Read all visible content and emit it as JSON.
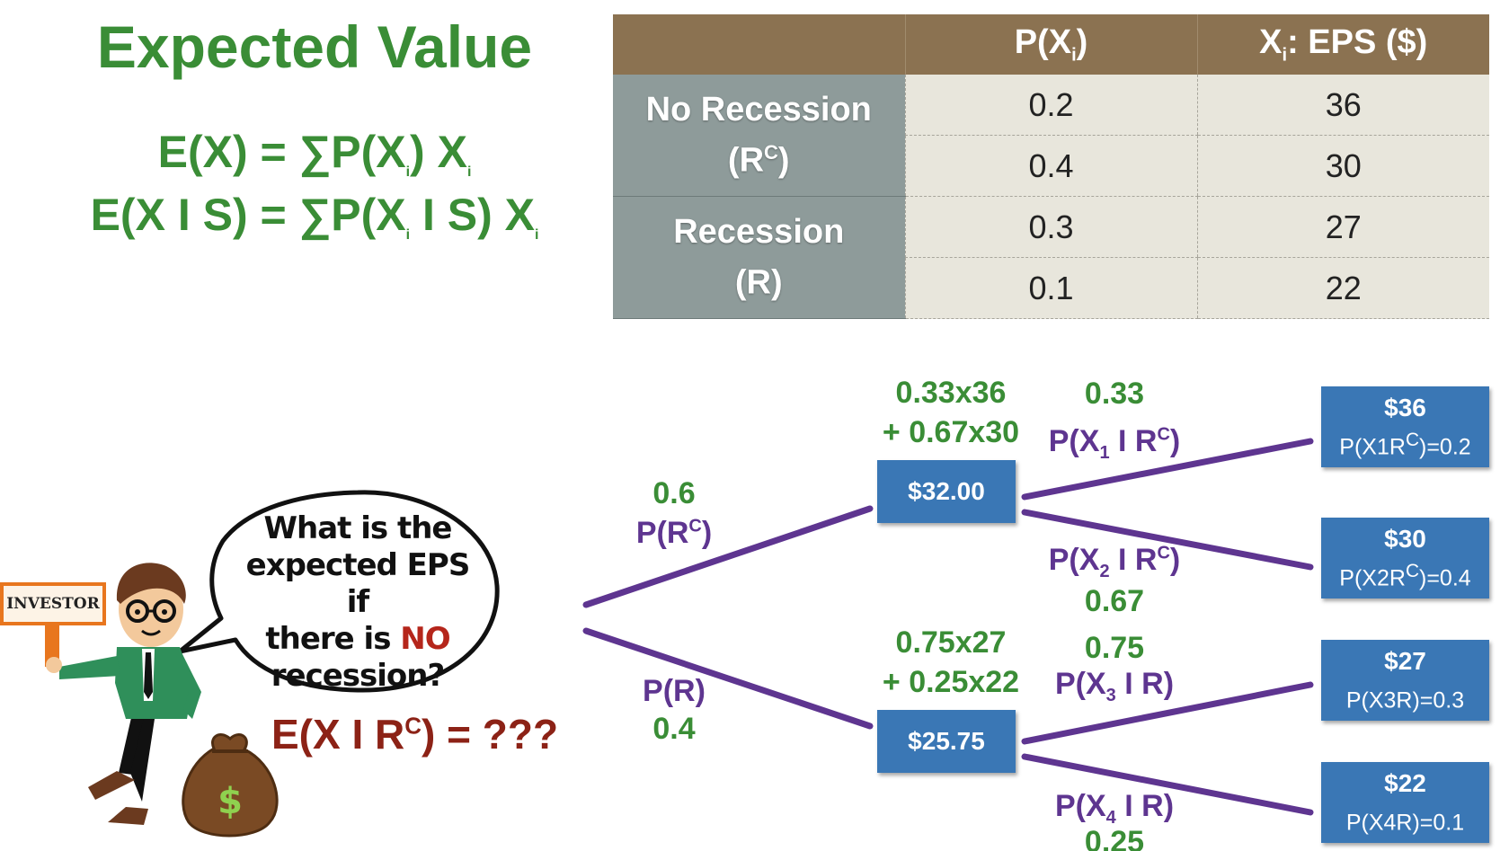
{
  "title": "Expected Value",
  "formulas": {
    "f1": {
      "lhs": "E(X) = ∑P(X",
      "sub": "i",
      "rhs": ") X",
      "sub2": "i"
    },
    "f2": {
      "lhs": "E(X I S) = ∑P(X",
      "sub": "i",
      "rhs": " I S) X",
      "sub2": "i"
    }
  },
  "table": {
    "headers": {
      "blank": "",
      "p_pre": "P(X",
      "p_sub": "i",
      "p_post": ")",
      "x_pre": "X",
      "x_sub": "i",
      "x_post": ": EPS ($)"
    },
    "groups": [
      {
        "line1": "No Recession",
        "line2_pre": "(R",
        "line2_sup": "C",
        "line2_post": ")",
        "rows": [
          {
            "p": "0.2",
            "x": "36"
          },
          {
            "p": "0.4",
            "x": "30"
          }
        ]
      },
      {
        "line1": "Recession",
        "line2_pre": "(R)",
        "line2_sup": "",
        "line2_post": "",
        "rows": [
          {
            "p": "0.3",
            "x": "27"
          },
          {
            "p": "0.1",
            "x": "22"
          }
        ]
      }
    ]
  },
  "tree": {
    "root_branches": {
      "upper": {
        "prob": "0.6",
        "label_pre": "P(R",
        "label_sup": "C",
        "label_post": ")"
      },
      "lower": {
        "label": "P(R)",
        "prob": "0.4"
      }
    },
    "mid_nodes": {
      "upper": {
        "value": "$32.00",
        "calc1": "0.33x36",
        "calc2": "+ 0.67x30"
      },
      "lower": {
        "value": "$25.75",
        "calc1": "0.75x27",
        "calc2": "+ 0.25x22"
      }
    },
    "branches": [
      {
        "prob": "0.33",
        "pre": "P(X",
        "sub": "1",
        "mid": " I R",
        "sup": "C",
        "post": ")"
      },
      {
        "prob": "0.67",
        "pre": "P(X",
        "sub": "2",
        "mid": " I R",
        "sup": "C",
        "post": ")"
      },
      {
        "prob": "0.75",
        "pre": "P(X",
        "sub": "3",
        "mid": " I R)",
        "sup": "",
        "post": ""
      },
      {
        "prob": "0.25",
        "pre": "P(X",
        "sub": "4",
        "mid": " I R)",
        "sup": "",
        "post": ""
      }
    ],
    "leaves": [
      {
        "amount": "$36",
        "pre": "P(X",
        "sub": "1",
        "mid": "R",
        "sup": "C",
        "post": ")=0.2"
      },
      {
        "amount": "$30",
        "pre": "P(X",
        "sub": "2",
        "mid": "R",
        "sup": "C",
        "post": ")=0.4"
      },
      {
        "amount": "$27",
        "pre": "P(X",
        "sub": "3",
        "mid": "R)=0.3",
        "sup": "",
        "post": ""
      },
      {
        "amount": "$22",
        "pre": "P(X",
        "sub": "4",
        "mid": "R)=0.1",
        "sup": "",
        "post": ""
      }
    ],
    "line_color": "#5e3590"
  },
  "speech_bubble": {
    "l1": "What is the",
    "l2": "expected EPS if",
    "l3_pre": "there is ",
    "l3_no": "NO",
    "l4": "recession?"
  },
  "question": {
    "pre": "E(X I R",
    "sup": "C",
    "post": ") = ???"
  },
  "investor_sign": "INVESTOR",
  "money_bag_symbol": "$",
  "colors": {
    "green": "#3a8d36",
    "purple": "#5e3590",
    "node_blue": "#3a77b5",
    "header_brown": "#8b7251",
    "state_gray": "#8e9b9a",
    "cell_beige": "#e8e6dc",
    "question_red": "#8c2216"
  }
}
